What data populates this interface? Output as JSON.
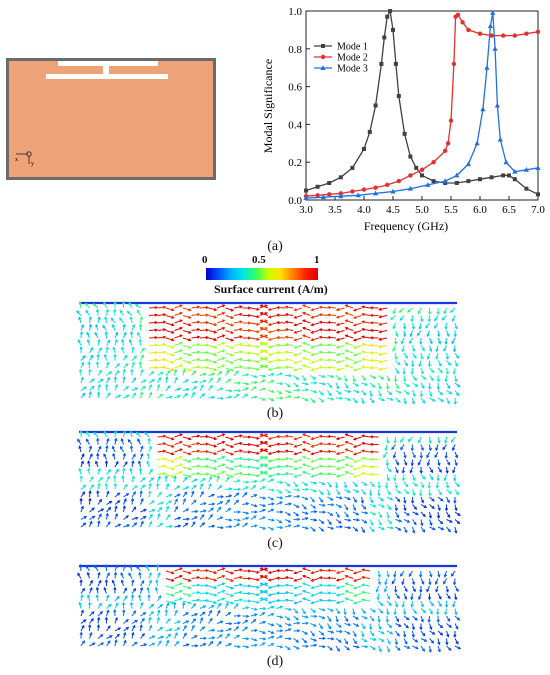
{
  "figure": {
    "captions": {
      "a": "(a)",
      "b": "(b)",
      "c": "(c)",
      "d": "(d)"
    }
  },
  "antenna": {
    "axis_x_label": "x",
    "axis_y_label": "y",
    "substrate_color": "#EDA277",
    "border_color": "#6b6b6b"
  },
  "colorbar": {
    "title": "Surface current (A/m)",
    "tick_min": "0",
    "tick_mid": "0.5",
    "tick_max": "1"
  },
  "chart_data": {
    "type": "line",
    "xlabel": "Frequency (GHz)",
    "ylabel": "Modal Significance",
    "xlim": [
      3.0,
      7.0
    ],
    "ylim": [
      0.0,
      1.0
    ],
    "xticks": [
      "3.0",
      "3.5",
      "4.0",
      "4.5",
      "5.0",
      "5.5",
      "6.0",
      "6.5",
      "7.0"
    ],
    "yticks": [
      "0.0",
      "0.2",
      "0.4",
      "0.6",
      "0.8",
      "1.0"
    ],
    "legend_position": "top-left",
    "series": [
      {
        "name": "Mode 1",
        "color": "#404040",
        "marker": "square",
        "x": [
          3.0,
          3.2,
          3.4,
          3.6,
          3.8,
          4.0,
          4.1,
          4.2,
          4.3,
          4.35,
          4.4,
          4.45,
          4.5,
          4.55,
          4.6,
          4.7,
          4.8,
          4.9,
          5.0,
          5.2,
          5.4,
          5.6,
          5.8,
          6.0,
          6.2,
          6.4,
          6.5,
          6.6,
          6.8,
          7.0
        ],
        "y": [
          0.05,
          0.07,
          0.09,
          0.12,
          0.17,
          0.27,
          0.36,
          0.5,
          0.72,
          0.86,
          0.97,
          1.0,
          0.9,
          0.72,
          0.55,
          0.35,
          0.23,
          0.17,
          0.13,
          0.1,
          0.09,
          0.09,
          0.1,
          0.11,
          0.12,
          0.13,
          0.13,
          0.11,
          0.06,
          0.03
        ]
      },
      {
        "name": "Mode 2",
        "color": "#e03030",
        "marker": "circle",
        "x": [
          3.0,
          3.2,
          3.4,
          3.6,
          3.8,
          4.0,
          4.2,
          4.4,
          4.6,
          4.8,
          5.0,
          5.2,
          5.4,
          5.45,
          5.5,
          5.55,
          5.58,
          5.62,
          5.7,
          5.8,
          6.0,
          6.2,
          6.4,
          6.6,
          6.8,
          7.0
        ],
        "y": [
          0.02,
          0.025,
          0.03,
          0.035,
          0.045,
          0.055,
          0.065,
          0.08,
          0.1,
          0.13,
          0.16,
          0.2,
          0.26,
          0.3,
          0.42,
          0.72,
          0.97,
          0.98,
          0.94,
          0.9,
          0.88,
          0.87,
          0.87,
          0.87,
          0.88,
          0.89
        ]
      },
      {
        "name": "Mode 3",
        "color": "#2070e0",
        "marker": "triangle",
        "x": [
          3.0,
          3.3,
          3.6,
          3.9,
          4.2,
          4.5,
          4.8,
          5.1,
          5.4,
          5.6,
          5.8,
          5.95,
          6.05,
          6.12,
          6.18,
          6.22,
          6.26,
          6.3,
          6.35,
          6.45,
          6.6,
          6.8,
          7.0
        ],
        "y": [
          0.01,
          0.015,
          0.02,
          0.025,
          0.035,
          0.045,
          0.06,
          0.08,
          0.1,
          0.13,
          0.19,
          0.3,
          0.48,
          0.7,
          0.92,
          0.99,
          0.8,
          0.5,
          0.32,
          0.2,
          0.15,
          0.16,
          0.17
        ]
      }
    ]
  }
}
